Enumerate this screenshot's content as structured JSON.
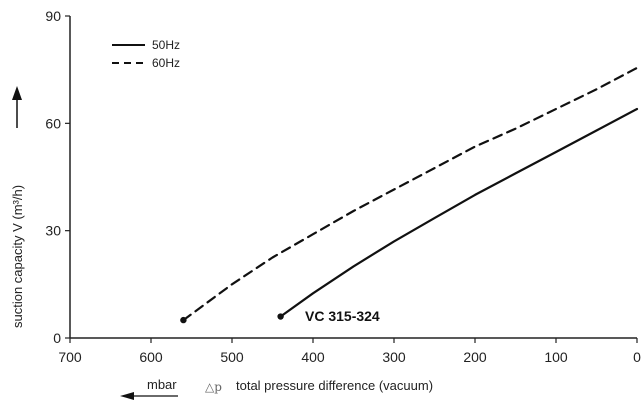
{
  "chart_data": {
    "type": "line",
    "x_unit": "mbar",
    "x_delta_symbol": "△p",
    "xlabel": "total pressure difference (vacuum)",
    "ylabel": "suction capacity V (m³/h)",
    "xlim": [
      700,
      0
    ],
    "ylim": [
      0,
      90
    ],
    "x_ticks": [
      700,
      600,
      500,
      400,
      300,
      200,
      100,
      0
    ],
    "y_ticks": [
      0,
      30,
      60,
      90
    ],
    "grid": false,
    "legend_position": "top-left",
    "annotation": "VC 315-324",
    "series": [
      {
        "name": "50Hz",
        "style": "solid",
        "x": [
          440,
          400,
          350,
          300,
          250,
          200,
          150,
          100,
          50,
          0
        ],
        "y": [
          6,
          12.5,
          20,
          27,
          33.5,
          40,
          46,
          52,
          58,
          64
        ]
      },
      {
        "name": "60Hz",
        "style": "dashed",
        "x": [
          560,
          500,
          450,
          400,
          350,
          300,
          250,
          200,
          150,
          100,
          50,
          0
        ],
        "y": [
          5,
          15,
          22.5,
          29,
          35.5,
          41.5,
          47.5,
          53.5,
          58.5,
          64,
          69.5,
          75.5
        ]
      }
    ]
  },
  "colors": {
    "line": "#111111",
    "axis": "#222222"
  }
}
